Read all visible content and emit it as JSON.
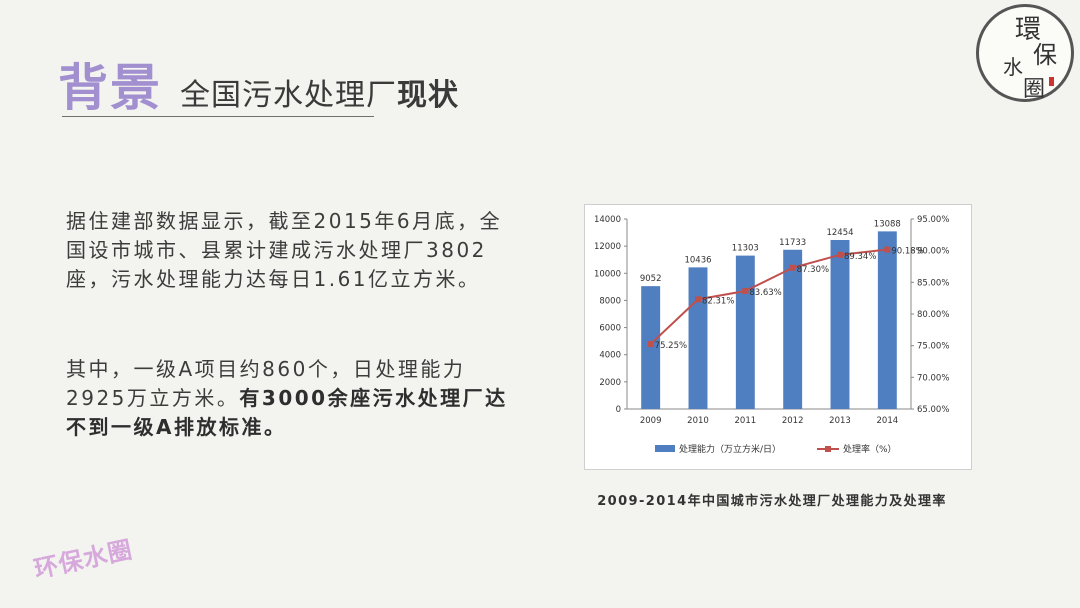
{
  "header": {
    "title": "背景",
    "subtitle_plain": "全国污水处理厂",
    "subtitle_bold": "现状"
  },
  "logo": {
    "chars": [
      "環",
      "保",
      "水",
      "圈"
    ]
  },
  "body": {
    "para1": "据住建部数据显示，截至2015年6月底，全国设市城市、县累计建成污水处理厂3802座，污水处理能力达每日1.61亿立方米。",
    "para2_plain": "其中，一级A项目约860个，日处理能力2925万立方米。",
    "para2_bold": "有3000余座污水处理厂达不到一级A排放标准。"
  },
  "chart_caption": "2009-2014年中国城市污水处理厂处理能力及处理率",
  "watermark": "环保水圈",
  "chart_data": {
    "type": "bar",
    "categories": [
      "2009",
      "2010",
      "2011",
      "2012",
      "2013",
      "2014"
    ],
    "series": [
      {
        "name": "处理能力（万立方米/日）",
        "type": "bar",
        "axis": "left",
        "values": [
          9052,
          10436,
          11303,
          11733,
          12454,
          13088
        ],
        "data_labels": [
          "9052",
          "10436",
          "11303",
          "11733",
          "12454",
          "13088"
        ],
        "color": "#4f7fc0"
      },
      {
        "name": "处理率（%）",
        "type": "line",
        "axis": "right",
        "values": [
          75.25,
          82.31,
          83.63,
          87.3,
          89.34,
          90.18
        ],
        "data_labels": [
          "75.25%",
          "82.31%",
          "83.63%",
          "87.30%",
          "89.34%",
          "90.18%"
        ],
        "color": "#c0504d"
      }
    ],
    "ylim_left": [
      0,
      14000
    ],
    "yticks_left": [
      "0",
      "2000",
      "4000",
      "6000",
      "8000",
      "10000",
      "12000",
      "14000"
    ],
    "ylim_right": [
      65,
      95
    ],
    "yticks_right": [
      "65.00%",
      "70.00%",
      "75.00%",
      "80.00%",
      "85.00%",
      "90.00%",
      "95.00%"
    ],
    "grid": false,
    "legend_position": "bottom"
  }
}
